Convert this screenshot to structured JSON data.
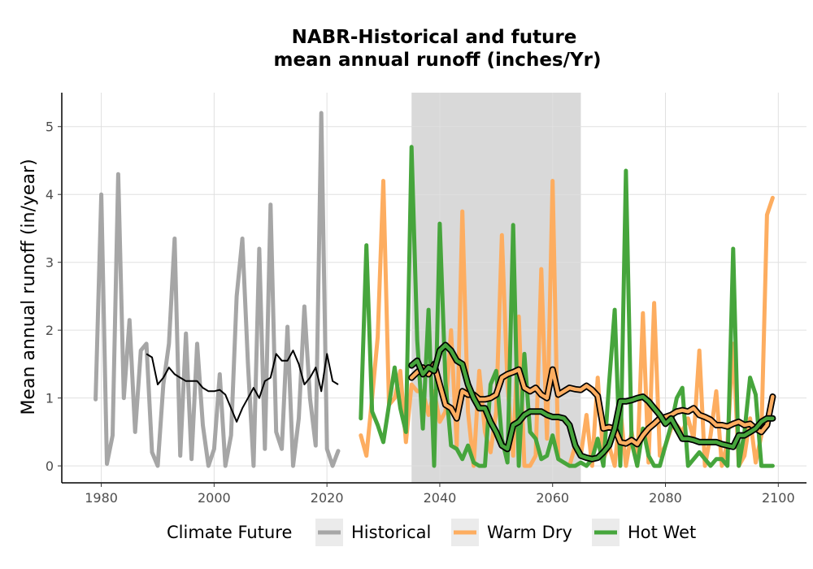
{
  "chart_data": {
    "type": "line",
    "title_line1": "NABR-Historical and future",
    "title_line2": "mean annual runoff (inches/Yr)",
    "xlabel": "",
    "ylabel": "Mean annual runoff (in/year)",
    "xlim": [
      1973,
      2105
    ],
    "ylim": [
      -0.25,
      5.5
    ],
    "x_ticks": [
      1980,
      2000,
      2020,
      2040,
      2060,
      2080,
      2100
    ],
    "y_ticks": [
      0,
      1,
      2,
      3,
      4,
      5
    ],
    "grid": true,
    "shaded_period": [
      2035,
      2065
    ],
    "legend": {
      "title": "Climate Future",
      "placement": "bottom",
      "items": [
        "Historical",
        "Warm Dry",
        "Hot Wet"
      ]
    },
    "colors": {
      "Historical": "#a6a6a6",
      "Warm Dry": "#fdad60",
      "Hot Wet": "#46a53c",
      "moving_average": "#000000",
      "shade": "#d9d9d9",
      "grid": "#e0e0e0"
    },
    "series": [
      {
        "name": "Historical",
        "x": [
          1979,
          1980,
          1981,
          1982,
          1983,
          1984,
          1985,
          1986,
          1987,
          1988,
          1989,
          1990,
          1991,
          1992,
          1993,
          1994,
          1995,
          1996,
          1997,
          1998,
          1999,
          2000,
          2001,
          2002,
          2003,
          2004,
          2005,
          2006,
          2007,
          2008,
          2009,
          2010,
          2011,
          2012,
          2013,
          2014,
          2015,
          2016,
          2017,
          2018,
          2019,
          2020,
          2021,
          2022
        ],
        "values": [
          0.98,
          4.0,
          0.03,
          0.45,
          4.3,
          1.0,
          2.15,
          0.5,
          1.7,
          1.8,
          0.2,
          0.0,
          1.2,
          1.8,
          3.35,
          0.15,
          1.95,
          0.1,
          1.8,
          0.6,
          0.0,
          0.25,
          1.35,
          0.0,
          0.45,
          2.5,
          3.35,
          1.5,
          0.0,
          3.2,
          0.25,
          3.85,
          0.5,
          0.25,
          2.05,
          0.0,
          0.7,
          2.35,
          1.0,
          0.3,
          5.2,
          0.25,
          0.0,
          0.22
        ],
        "moving_average": {
          "x": [
            1988,
            1989,
            1990,
            1991,
            1992,
            1993,
            1994,
            1995,
            1996,
            1997,
            1998,
            1999,
            2000,
            2001,
            2002,
            2003,
            2004,
            2005,
            2006,
            2007,
            2008,
            2009,
            2010,
            2011,
            2012,
            2013,
            2014,
            2015,
            2016,
            2017,
            2018,
            2019,
            2020,
            2021,
            2022
          ],
          "values": [
            1.65,
            1.6,
            1.2,
            1.3,
            1.45,
            1.35,
            1.3,
            1.25,
            1.25,
            1.25,
            1.15,
            1.1,
            1.1,
            1.12,
            1.05,
            0.85,
            0.65,
            0.85,
            1.0,
            1.15,
            1.0,
            1.25,
            1.3,
            1.65,
            1.55,
            1.55,
            1.7,
            1.5,
            1.2,
            1.3,
            1.45,
            1.1,
            1.65,
            1.25,
            1.2
          ]
        }
      },
      {
        "name": "Warm Dry",
        "x": [
          2026,
          2027,
          2028,
          2029,
          2030,
          2031,
          2032,
          2033,
          2034,
          2035,
          2036,
          2037,
          2038,
          2039,
          2040,
          2041,
          2042,
          2043,
          2044,
          2045,
          2046,
          2047,
          2048,
          2049,
          2050,
          2051,
          2052,
          2053,
          2054,
          2055,
          2056,
          2057,
          2058,
          2059,
          2060,
          2061,
          2062,
          2063,
          2064,
          2065,
          2066,
          2067,
          2068,
          2069,
          2070,
          2071,
          2072,
          2073,
          2074,
          2075,
          2076,
          2077,
          2078,
          2079,
          2080,
          2081,
          2082,
          2083,
          2084,
          2085,
          2086,
          2087,
          2088,
          2089,
          2090,
          2091,
          2092,
          2093,
          2094,
          2095,
          2096,
          2097,
          2098,
          2099
        ],
        "values": [
          0.45,
          0.15,
          1.0,
          1.9,
          4.2,
          0.9,
          1.0,
          1.4,
          0.35,
          1.2,
          1.1,
          1.1,
          0.75,
          1.1,
          0.65,
          0.8,
          2.0,
          0.3,
          3.75,
          0.8,
          0.0,
          1.4,
          0.5,
          0.2,
          0.8,
          3.4,
          1.2,
          0.15,
          2.2,
          0.0,
          0.0,
          0.15,
          2.9,
          0.4,
          4.2,
          0.1,
          0.05,
          0.0,
          0.3,
          0.15,
          0.75,
          0.0,
          1.3,
          0.1,
          0.3,
          0.0,
          0.85,
          0.0,
          0.5,
          0.0,
          2.25,
          0.05,
          2.4,
          0.15,
          0.3,
          0.55,
          0.6,
          0.5,
          0.7,
          0.4,
          1.7,
          0.0,
          0.45,
          1.1,
          0.0,
          0.35,
          1.8,
          0.0,
          0.15,
          0.7,
          0.05,
          0.45,
          3.7,
          3.95
        ],
        "moving_average": {
          "x": [
            2035,
            2036,
            2037,
            2038,
            2039,
            2040,
            2041,
            2042,
            2043,
            2044,
            2045,
            2046,
            2047,
            2048,
            2049,
            2050,
            2051,
            2052,
            2053,
            2054,
            2055,
            2056,
            2057,
            2058,
            2059,
            2060,
            2061,
            2062,
            2063,
            2064,
            2065,
            2066,
            2067,
            2068,
            2069,
            2070,
            2071,
            2072,
            2073,
            2074,
            2075,
            2076,
            2077,
            2078,
            2079,
            2080,
            2081,
            2082,
            2083,
            2084,
            2085,
            2086,
            2087,
            2088,
            2089,
            2090,
            2091,
            2092,
            2093,
            2094,
            2095,
            2096,
            2097,
            2098,
            2099
          ],
          "values": [
            1.3,
            1.38,
            1.45,
            1.35,
            1.5,
            1.2,
            0.9,
            0.85,
            0.7,
            1.1,
            1.05,
            1.05,
            0.98,
            0.98,
            1.0,
            1.05,
            1.3,
            1.35,
            1.38,
            1.42,
            1.15,
            1.1,
            1.15,
            1.05,
            1.0,
            1.42,
            1.05,
            1.1,
            1.15,
            1.13,
            1.12,
            1.18,
            1.12,
            1.03,
            0.55,
            0.57,
            0.55,
            0.35,
            0.33,
            0.38,
            0.32,
            0.45,
            0.55,
            0.62,
            0.7,
            0.72,
            0.75,
            0.8,
            0.82,
            0.8,
            0.85,
            0.75,
            0.72,
            0.68,
            0.6,
            0.6,
            0.58,
            0.62,
            0.65,
            0.6,
            0.62,
            0.55,
            0.5,
            0.6,
            1.02
          ]
        }
      },
      {
        "name": "Hot Wet",
        "x": [
          2026,
          2027,
          2028,
          2029,
          2030,
          2031,
          2032,
          2033,
          2034,
          2035,
          2036,
          2037,
          2038,
          2039,
          2040,
          2041,
          2042,
          2043,
          2044,
          2045,
          2046,
          2047,
          2048,
          2049,
          2050,
          2051,
          2052,
          2053,
          2054,
          2055,
          2056,
          2057,
          2058,
          2059,
          2060,
          2061,
          2062,
          2063,
          2064,
          2065,
          2066,
          2067,
          2068,
          2069,
          2070,
          2071,
          2072,
          2073,
          2074,
          2075,
          2076,
          2077,
          2078,
          2079,
          2080,
          2081,
          2082,
          2083,
          2084,
          2085,
          2086,
          2087,
          2088,
          2089,
          2090,
          2091,
          2092,
          2093,
          2094,
          2095,
          2096,
          2097,
          2098,
          2099
        ],
        "values": [
          0.7,
          3.25,
          0.8,
          0.6,
          0.35,
          0.9,
          1.45,
          0.85,
          0.5,
          4.7,
          1.85,
          0.55,
          2.3,
          0.0,
          3.57,
          1.25,
          0.3,
          0.25,
          0.1,
          0.3,
          0.05,
          0.0,
          0.0,
          1.2,
          1.4,
          0.4,
          0.05,
          3.55,
          0.0,
          1.65,
          0.5,
          0.4,
          0.1,
          0.15,
          0.45,
          0.1,
          0.05,
          0.0,
          0.0,
          0.05,
          0.0,
          0.1,
          0.4,
          0.0,
          1.2,
          2.3,
          0.0,
          4.35,
          0.35,
          0.0,
          0.55,
          0.15,
          0.0,
          0.0,
          0.3,
          0.6,
          1.0,
          1.15,
          0.0,
          0.1,
          0.2,
          0.1,
          0.0,
          0.1,
          0.1,
          0.0,
          3.2,
          0.0,
          0.5,
          1.3,
          1.05,
          0.0,
          0.0,
          0.0
        ],
        "moving_average": {
          "x": [
            2035,
            2036,
            2037,
            2038,
            2039,
            2040,
            2041,
            2042,
            2043,
            2044,
            2045,
            2046,
            2047,
            2048,
            2049,
            2050,
            2051,
            2052,
            2053,
            2054,
            2055,
            2056,
            2057,
            2058,
            2059,
            2060,
            2061,
            2062,
            2063,
            2064,
            2065,
            2066,
            2067,
            2068,
            2069,
            2070,
            2071,
            2072,
            2073,
            2074,
            2075,
            2076,
            2077,
            2078,
            2079,
            2080,
            2081,
            2082,
            2083,
            2084,
            2085,
            2086,
            2087,
            2088,
            2089,
            2090,
            2091,
            2092,
            2093,
            2094,
            2095,
            2096,
            2097,
            2098,
            2099
          ],
          "values": [
            1.48,
            1.55,
            1.35,
            1.45,
            1.4,
            1.7,
            1.78,
            1.7,
            1.55,
            1.5,
            1.2,
            1.0,
            0.85,
            0.85,
            0.65,
            0.5,
            0.3,
            0.25,
            0.6,
            0.65,
            0.75,
            0.8,
            0.8,
            0.8,
            0.75,
            0.72,
            0.72,
            0.7,
            0.6,
            0.3,
            0.15,
            0.12,
            0.1,
            0.12,
            0.2,
            0.3,
            0.55,
            0.95,
            0.95,
            0.97,
            1.0,
            1.02,
            0.95,
            0.85,
            0.75,
            0.62,
            0.7,
            0.55,
            0.4,
            0.4,
            0.38,
            0.35,
            0.35,
            0.35,
            0.35,
            0.32,
            0.3,
            0.28,
            0.45,
            0.45,
            0.5,
            0.55,
            0.65,
            0.7,
            0.7
          ]
        }
      }
    ]
  }
}
